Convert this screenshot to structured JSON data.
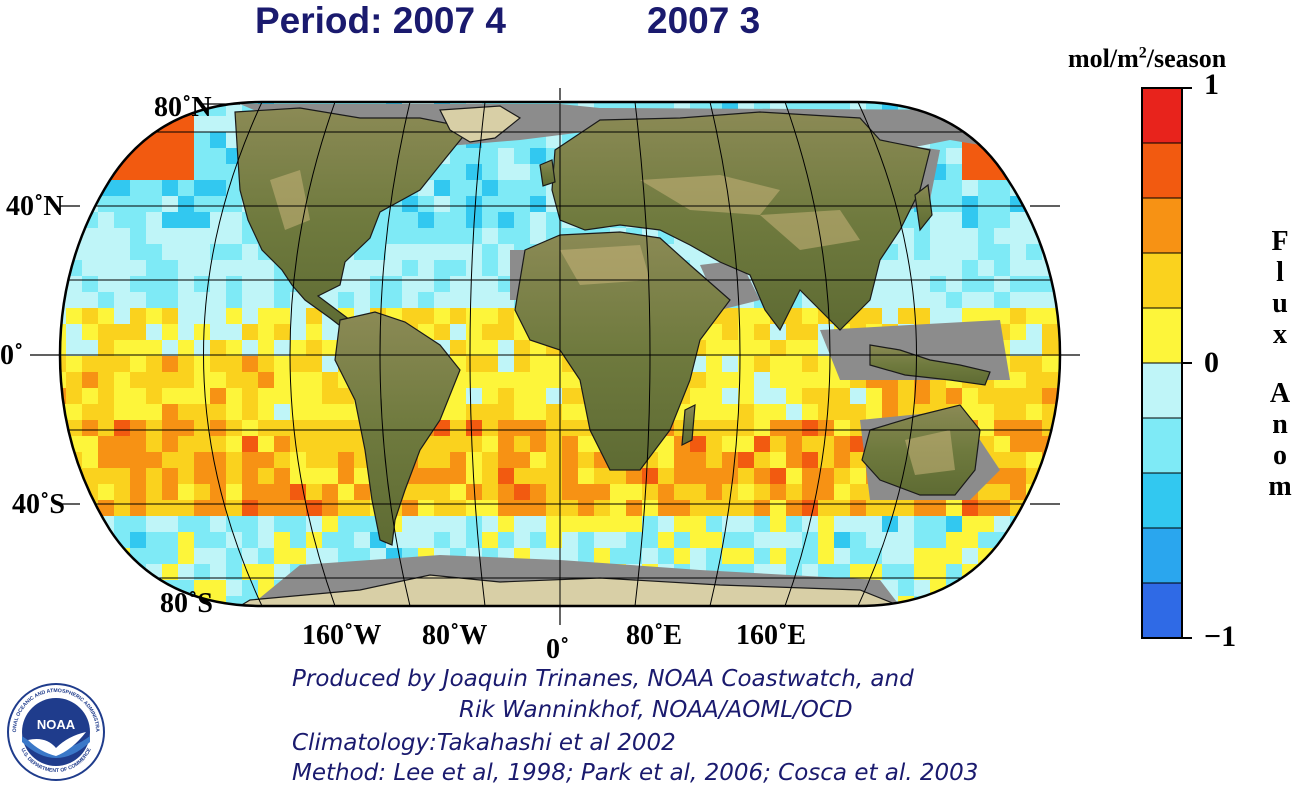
{
  "title": {
    "period_label": "Period: 2007 4",
    "period_compare": "2007 3"
  },
  "map": {
    "projection": "Robinson-like global",
    "lat_labels": [
      "80˚N",
      "40˚N",
      "0˚",
      "40˚S",
      "80˚S"
    ],
    "lon_labels": [
      "160˚W",
      "80˚W",
      "0˚",
      "80˚E",
      "160˚E"
    ],
    "colors": {
      "land": "#6f7a3e",
      "land_high": "#c8b47a",
      "no_data": "#8c8c8c",
      "ice": "#d8cfa6"
    }
  },
  "colorbar": {
    "units_prefix": "mol/m",
    "units_sup": "2",
    "units_suffix": "/season",
    "max_label": "1",
    "mid_label": "0",
    "min_label": "−1",
    "vertical_label_1": "Flux",
    "vertical_label_2": "Anom",
    "range": [
      -1,
      1
    ],
    "colors_top_to_bottom": [
      "#e8231c",
      "#f25a10",
      "#f79214",
      "#fad21e",
      "#fdf53a",
      "#bff5f8",
      "#7eeaf6",
      "#32c8f0",
      "#2aa6ee",
      "#2f6ae6"
    ]
  },
  "credits": {
    "line1": "Produced by Joaquin Trinanes, NOAA Coastwatch, and",
    "line2": "Rik Wanninkhof, NOAA/AOML/OCD",
    "line3": "Climatology:Takahashi et al 2002",
    "line4": "Method: Lee et al, 1998; Park et al, 2006; Cosca et al. 2003"
  },
  "logo": {
    "text": "NOAA",
    "ring_top": "NATIONAL OCEANIC AND ATMOSPHERIC ADMINISTRATION",
    "ring_bottom": "U.S. DEPARTMENT OF COMMERCE",
    "colors": {
      "sky": "#1f3c8c",
      "sea": "#3a78c8",
      "bird": "#ffffff"
    }
  }
}
